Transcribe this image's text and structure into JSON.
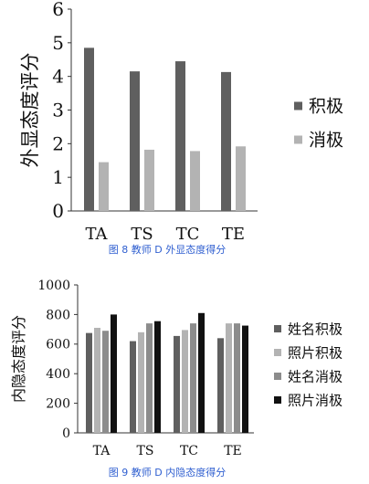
{
  "chart_data": [
    {
      "type": "bar",
      "categories": [
        "TA",
        "TS",
        "TC",
        "TE"
      ],
      "series": [
        {
          "name": "积极",
          "values": [
            4.85,
            4.15,
            4.45,
            4.13
          ],
          "color": "#5f5f5f"
        },
        {
          "name": "消极",
          "values": [
            1.45,
            1.82,
            1.78,
            1.92
          ],
          "color": "#b3b3b3"
        }
      ],
      "ylabel": "外显态度评分",
      "ylim": [
        0,
        6
      ],
      "yticks": [
        0,
        1,
        2,
        3,
        4,
        5,
        6
      ],
      "grid": false,
      "legend_position": "right",
      "caption": "图 8 教师 D 外显态度得分"
    },
    {
      "type": "bar",
      "categories": [
        "TA",
        "TS",
        "TC",
        "TE"
      ],
      "series": [
        {
          "name": "姓名积极",
          "values": [
            675,
            620,
            655,
            640
          ],
          "color": "#5f5f5f"
        },
        {
          "name": "照片积极",
          "values": [
            710,
            680,
            695,
            740
          ],
          "color": "#b3b3b3"
        },
        {
          "name": "姓名消极",
          "values": [
            690,
            740,
            740,
            740
          ],
          "color": "#8c8c8c"
        },
        {
          "name": "照片消极",
          "values": [
            800,
            755,
            810,
            725
          ],
          "color": "#111111"
        }
      ],
      "ylabel": "内隐态度评分",
      "ylim": [
        0,
        1000
      ],
      "yticks": [
        0,
        200,
        400,
        600,
        800,
        1000
      ],
      "grid": false,
      "legend_position": "right",
      "caption": "图 9 教师 D 内隐态度得分"
    }
  ]
}
